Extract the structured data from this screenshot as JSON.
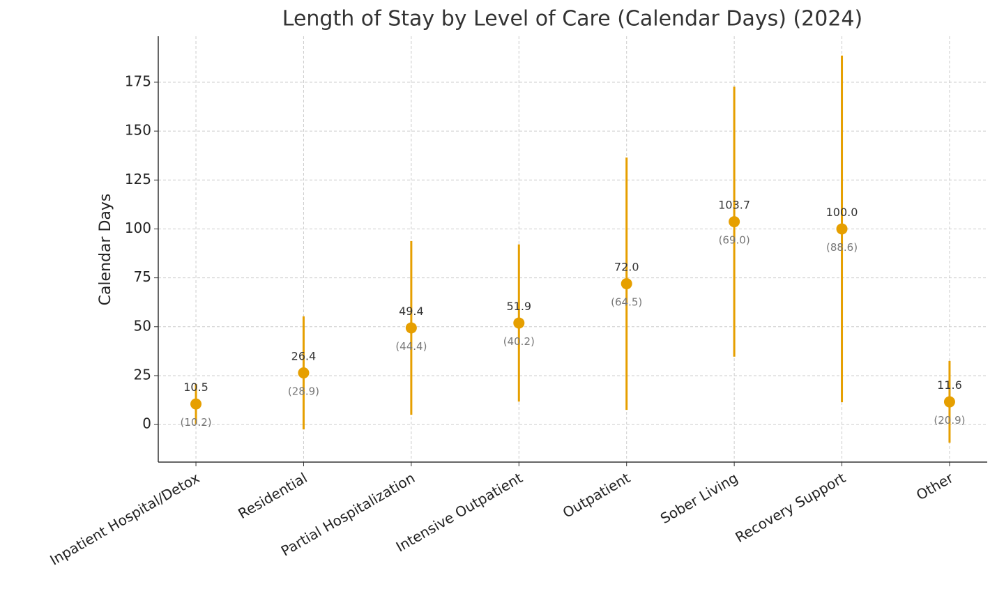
{
  "chart_data": {
    "type": "errorbar",
    "title": "Length of Stay by Level of Care (Calendar Days) (2024)",
    "y_label": "Calendar Days",
    "categories": [
      "Inpatient Hospital/Detox",
      "Residential",
      "Partial Hospitalization",
      "Intensive Outpatient",
      "Outpatient",
      "Sober Living",
      "Recovery Support",
      "Other"
    ],
    "values": [
      10.5,
      26.4,
      49.4,
      51.9,
      72.0,
      103.7,
      100.0,
      11.6
    ],
    "value_labels": [
      "10.5",
      "26.4",
      "49.4",
      "51.9",
      "72.0",
      "103.7",
      "100.0",
      "11.6"
    ],
    "errors": [
      10.2,
      28.9,
      44.4,
      40.2,
      64.5,
      69.0,
      88.6,
      20.9
    ],
    "error_labels": [
      "(10.2)",
      "(28.9)",
      "(44.4)",
      "(40.2)",
      "(64.5)",
      "(69.0)",
      "(88.6)",
      "(20.9)"
    ],
    "color": "#e69f00",
    "ylim": [
      -19.2,
      198.5
    ],
    "yticks": [
      0,
      25,
      50,
      75,
      100,
      125,
      150,
      175
    ],
    "grid": true
  }
}
